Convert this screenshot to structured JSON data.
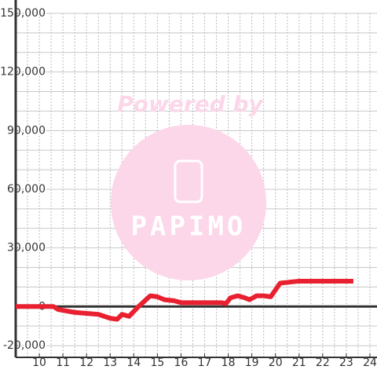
{
  "chart_data": {
    "type": "line",
    "watermark": {
      "top": "Powered by",
      "logo": "PAPIMO"
    },
    "x": [
      9,
      10.6,
      10.8,
      11.5,
      12,
      12.5,
      13,
      13.3,
      13.5,
      13.8,
      14.2,
      14.7,
      15,
      15.3,
      15.7,
      16,
      17,
      17.7,
      17.9,
      18.1,
      18.4,
      18.7,
      18.9,
      19.2,
      19.5,
      19.8,
      20.2,
      21,
      23.3
    ],
    "series": [
      {
        "color": "#e8202f",
        "values": [
          0,
          0,
          -1500,
          -3000,
          -3500,
          -4000,
          -6000,
          -6500,
          -4000,
          -5000,
          0,
          5500,
          5000,
          3500,
          3000,
          2000,
          2000,
          2000,
          1500,
          4500,
          5500,
          4500,
          3500,
          5500,
          5500,
          5000,
          12000,
          13000,
          13000
        ]
      }
    ],
    "xlim": [
      9,
      24.3
    ],
    "xticks": [
      10,
      11,
      12,
      13,
      14,
      15,
      16,
      17,
      18,
      19,
      20,
      21,
      22,
      23,
      24
    ],
    "x_minor_ticks": [
      9.5,
      10.5,
      11.5,
      12.5,
      13.5,
      14.5,
      15.5,
      16.5,
      17.5,
      18.5,
      19.5,
      20.5,
      21.5,
      22.5,
      23.5
    ],
    "ylim": [
      -26000,
      150000
    ],
    "yticks": [
      {
        "value": -20000,
        "label": "-20,000"
      },
      0,
      {
        "value": 30000,
        "label": "30,000"
      },
      {
        "value": 60000,
        "label": "60,000"
      },
      {
        "value": 90000,
        "label": "90,000"
      },
      {
        "value": 120000,
        "label": "120,000"
      },
      {
        "value": 150000,
        "label": "150,000"
      }
    ],
    "y_minor_ticks": [
      -10000,
      10000,
      20000,
      40000,
      50000,
      70000,
      80000,
      100000,
      110000,
      130000,
      140000
    ],
    "grid": true
  }
}
